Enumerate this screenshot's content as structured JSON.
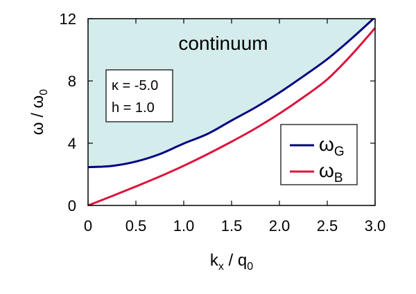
{
  "chart_data": {
    "type": "line",
    "xlabel": {
      "main": "k",
      "sub1": "x",
      "mid": " / q",
      "sub2": "0"
    },
    "ylabel": {
      "main": "ω / ω",
      "sub": "0"
    },
    "xlim": [
      0,
      3.0
    ],
    "ylim": [
      0,
      12
    ],
    "xticks": [
      0,
      0.5,
      1.0,
      1.5,
      2.0,
      2.5,
      3.0
    ],
    "xtick_labels": [
      "0",
      "0.5",
      "1.0",
      "1.5",
      "2.0",
      "2.5",
      "3.0"
    ],
    "yticks": [
      0,
      4,
      8,
      12
    ],
    "ytick_labels": [
      "0",
      "4",
      "8",
      "12"
    ],
    "grid": false,
    "legend_position": "lower-right",
    "region_label": "continuum",
    "params": [
      "κ = -5.0",
      "h = 1.0"
    ],
    "series": [
      {
        "name": "ω_G",
        "label_main": "ω",
        "label_sub": "G",
        "color": "#000080",
        "x": [
          0,
          0.25,
          0.5,
          0.75,
          1.0,
          1.25,
          1.5,
          1.75,
          2.0,
          2.25,
          2.5,
          2.75,
          3.0
        ],
        "y": [
          2.46,
          2.54,
          2.82,
          3.3,
          3.98,
          4.6,
          5.46,
          6.3,
          7.25,
          8.3,
          9.4,
          10.7,
          12.1
        ]
      },
      {
        "name": "ω_B",
        "label_main": "ω",
        "label_sub": "B",
        "color": "#dc143c",
        "x": [
          0,
          0.25,
          0.5,
          0.75,
          1.0,
          1.25,
          1.5,
          1.75,
          2.0,
          2.25,
          2.5,
          2.75,
          3.0
        ],
        "y": [
          0,
          0.6,
          1.22,
          1.86,
          2.55,
          3.3,
          4.1,
          4.95,
          5.9,
          6.95,
          8.1,
          9.65,
          11.4
        ]
      }
    ],
    "fill_color": "#d4ecec"
  }
}
